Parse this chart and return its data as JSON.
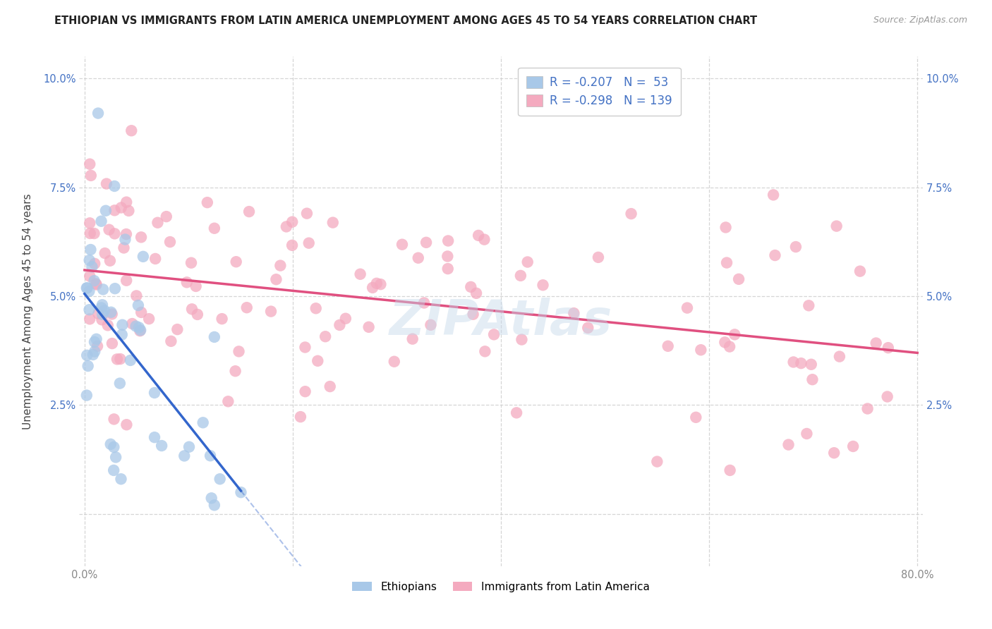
{
  "title": "ETHIOPIAN VS IMMIGRANTS FROM LATIN AMERICA UNEMPLOYMENT AMONG AGES 45 TO 54 YEARS CORRELATION CHART",
  "source": "Source: ZipAtlas.com",
  "ylabel": "Unemployment Among Ages 45 to 54 years",
  "xlim_min": -0.005,
  "xlim_max": 0.805,
  "ylim_min": -0.012,
  "ylim_max": 0.105,
  "xticks": [
    0.0,
    0.2,
    0.4,
    0.6,
    0.8
  ],
  "xticklabels": [
    "0.0%",
    "",
    "",
    "",
    "80.0%"
  ],
  "yticks": [
    0.0,
    0.025,
    0.05,
    0.075,
    0.1
  ],
  "yticklabels_left": [
    "",
    "2.5%",
    "5.0%",
    "7.5%",
    "10.0%"
  ],
  "yticklabels_right": [
    "",
    "2.5%",
    "5.0%",
    "7.5%",
    "10.0%"
  ],
  "legend_r1": "R = -0.207",
  "legend_n1": "N =  53",
  "legend_r2": "R = -0.298",
  "legend_n2": "N = 139",
  "blue_scatter_color": "#A8C8E8",
  "pink_scatter_color": "#F4AABF",
  "blue_line_color": "#3366CC",
  "pink_line_color": "#E05080",
  "legend_text_color": "#4472C4",
  "axis_tick_color": "#888888",
  "title_color": "#222222",
  "source_color": "#999999",
  "watermark_color": "#C5D8EA",
  "grid_color": "#CCCCCC",
  "blue_label": "Ethiopians",
  "pink_label": "Immigrants from Latin America",
  "watermark": "ZIPAtlas",
  "eth_seed": 101,
  "lat_seed": 202
}
